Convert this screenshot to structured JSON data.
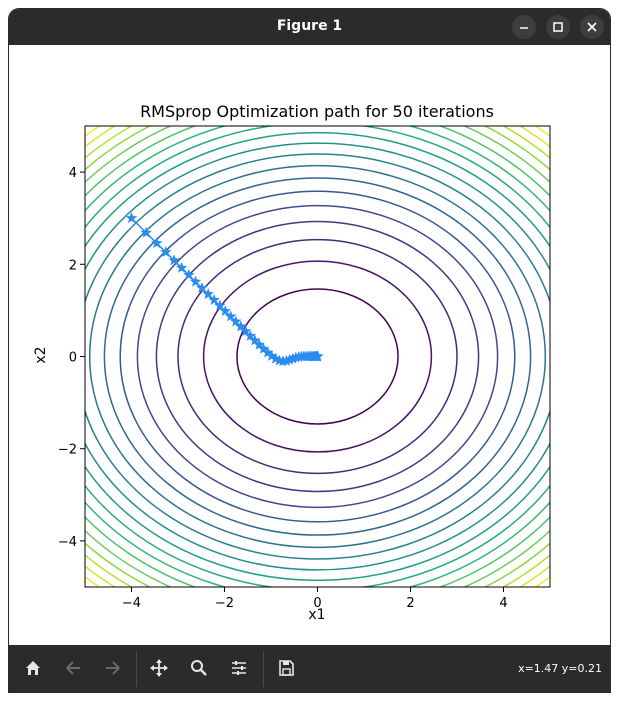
{
  "window": {
    "title": "Figure 1",
    "minimize_icon": "minimize-icon",
    "maximize_icon": "maximize-icon",
    "close_icon": "close-icon"
  },
  "toolbar": {
    "items": [
      "home-icon",
      "back-arrow-icon",
      "forward-arrow-icon",
      "pan-icon",
      "zoom-icon",
      "configure-subplots-icon",
      "save-icon"
    ],
    "coords_text": "x=1.47 y=0.21"
  },
  "chart_data": {
    "type": "contour",
    "title": "RMSprop Optimization path for 50 iterations",
    "xlabel": "x1",
    "ylabel": "x2",
    "xlim": [
      -5,
      5
    ],
    "ylim": [
      -5,
      5
    ],
    "xticks": [
      -4,
      -2,
      0,
      2,
      4
    ],
    "yticks": [
      -4,
      -2,
      0,
      2,
      4
    ],
    "xtick_labels": [
      "−4",
      "−2",
      "0",
      "2",
      "4"
    ],
    "ytick_labels": [
      "−4",
      "−2",
      "0",
      "2",
      "4"
    ],
    "function": "x1^2 + 1.4*x2^2",
    "contour_levels": [
      3,
      6,
      9,
      12,
      15,
      18,
      21,
      24,
      27,
      30,
      33,
      36,
      39,
      42,
      45,
      48,
      51,
      54,
      57
    ],
    "colormap": "viridis",
    "path_color": "#2b8cf0",
    "path_marker": "star",
    "path": {
      "x1": [
        -4.0,
        -3.684,
        -3.458,
        -3.262,
        -3.085,
        -2.921,
        -2.768,
        -2.622,
        -2.484,
        -2.351,
        -2.224,
        -2.101,
        -1.983,
        -1.868,
        -1.757,
        -1.65,
        -1.546,
        -1.445,
        -1.347,
        -1.253,
        -1.161,
        -1.072,
        -0.986,
        -0.902,
        -0.822,
        -0.745,
        -0.67,
        -0.599,
        -0.531,
        -0.467,
        -0.406,
        -0.349,
        -0.295,
        -0.245,
        -0.2,
        -0.158,
        -0.121,
        -0.088,
        -0.06,
        -0.037,
        -0.019,
        -0.006,
        0.002,
        0.005,
        0.003,
        -0.001,
        0.001,
        -0.001,
        0.001,
        -0.001
      ],
      "x2": [
        3.0,
        2.684,
        2.458,
        2.262,
        2.085,
        1.921,
        1.768,
        1.622,
        1.484,
        1.351,
        1.224,
        1.101,
        0.983,
        0.868,
        0.757,
        0.65,
        0.546,
        0.445,
        0.347,
        0.254,
        0.165,
        0.083,
        0.01,
        -0.05,
        -0.09,
        -0.105,
        -0.097,
        -0.074,
        -0.048,
        -0.026,
        -0.011,
        -0.002,
        0.002,
        0.003,
        0.002,
        0.001,
        0.0,
        -0.001,
        0.0,
        0.001,
        0.0,
        -0.001,
        0.0,
        0.001,
        0.0,
        -0.001,
        0.0,
        0.001,
        0.0,
        0.0
      ]
    }
  }
}
